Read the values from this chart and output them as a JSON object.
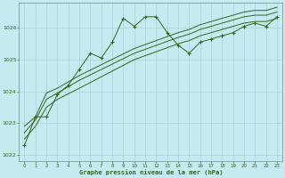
{
  "background_color": "#c5eaf0",
  "grid_color": "#a8d4dc",
  "line_color": "#336618",
  "xlabel": "Graphe pression niveau de la mer (hPa)",
  "xlim": [
    -0.5,
    23.5
  ],
  "ylim": [
    1021.8,
    1026.8
  ],
  "yticks": [
    1022,
    1023,
    1024,
    1025,
    1026
  ],
  "xticks": [
    0,
    1,
    2,
    3,
    4,
    5,
    6,
    7,
    8,
    9,
    10,
    11,
    12,
    13,
    14,
    15,
    16,
    17,
    18,
    19,
    20,
    21,
    22,
    23
  ],
  "series1_x": [
    0,
    1,
    2,
    3,
    4,
    5,
    6,
    7,
    8,
    9,
    10,
    11,
    12,
    13,
    14,
    15,
    16,
    17,
    18,
    19,
    20,
    21,
    22,
    23
  ],
  "series1_y": [
    1022.3,
    1023.2,
    1023.2,
    1023.9,
    1024.2,
    1024.7,
    1025.2,
    1025.05,
    1025.55,
    1026.3,
    1026.05,
    1026.35,
    1026.35,
    1025.85,
    1025.45,
    1025.2,
    1025.55,
    1025.65,
    1025.75,
    1025.85,
    1026.05,
    1026.15,
    1026.05,
    1026.35
  ],
  "series2_x": [
    0,
    1,
    2,
    3,
    5,
    10,
    14,
    15,
    16,
    17,
    18,
    19,
    20,
    21,
    22,
    23
  ],
  "series2_y": [
    1022.9,
    1023.2,
    1023.95,
    1024.1,
    1024.5,
    1025.35,
    1025.85,
    1025.95,
    1026.1,
    1026.2,
    1026.3,
    1026.4,
    1026.5,
    1026.55,
    1026.55,
    1026.65
  ],
  "series3_x": [
    0,
    1,
    2,
    3,
    5,
    10,
    14,
    15,
    16,
    17,
    18,
    19,
    20,
    21,
    22,
    23
  ],
  "series3_y": [
    1022.7,
    1023.1,
    1023.75,
    1023.95,
    1024.35,
    1025.2,
    1025.7,
    1025.8,
    1025.95,
    1026.05,
    1026.15,
    1026.25,
    1026.35,
    1026.4,
    1026.4,
    1026.5
  ],
  "series4_x": [
    0,
    1,
    2,
    3,
    5,
    10,
    14,
    15,
    16,
    17,
    18,
    19,
    20,
    21,
    22,
    23
  ],
  "series4_y": [
    1022.5,
    1022.9,
    1023.5,
    1023.75,
    1024.1,
    1025.0,
    1025.5,
    1025.6,
    1025.75,
    1025.85,
    1025.95,
    1026.05,
    1026.15,
    1026.2,
    1026.2,
    1026.3
  ]
}
